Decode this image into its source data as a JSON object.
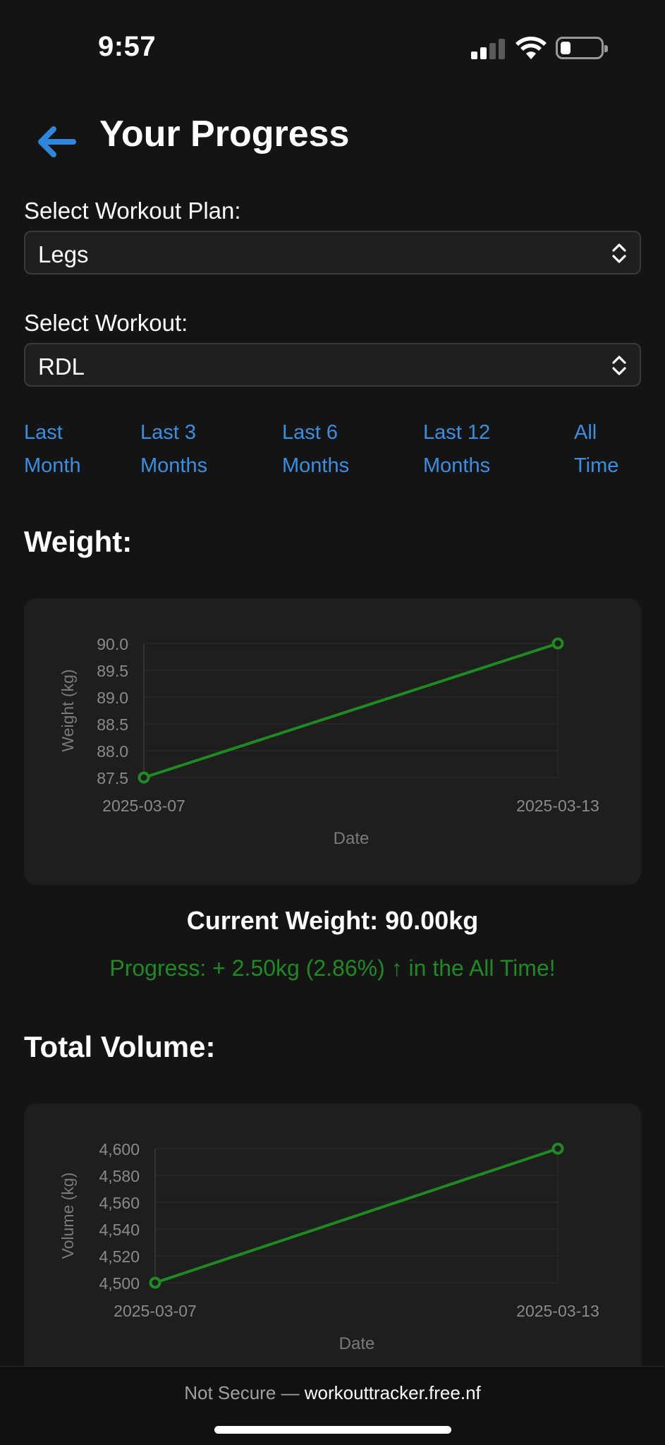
{
  "status_bar": {
    "time": "9:57"
  },
  "header": {
    "title": "Your Progress"
  },
  "form": {
    "plan_label": "Select Workout Plan:",
    "plan_value": "Legs",
    "workout_label": "Select Workout:",
    "workout_value": "RDL"
  },
  "ranges": [
    {
      "line1": "Last",
      "line2": "Month"
    },
    {
      "line1": "Last 3",
      "line2": "Months"
    },
    {
      "line1": "Last 6",
      "line2": "Months"
    },
    {
      "line1": "Last 12",
      "line2": "Months"
    },
    {
      "line1": "All",
      "line2": "Time"
    }
  ],
  "weight_section": {
    "title": "Weight:",
    "current": "Current Weight: 90.00kg",
    "progress": "Progress: + 2.50kg (2.86%) ↑ in the All Time!"
  },
  "volume_section": {
    "title": "Total Volume:"
  },
  "colors": {
    "accent": "#3a8fe0",
    "series": "#1f8a22",
    "background": "#141414",
    "card": "#1e1e1e"
  },
  "chart_data": [
    {
      "type": "line",
      "x": [
        "2025-03-07",
        "2025-03-13"
      ],
      "series": [
        {
          "values": [
            87.5,
            90.0
          ]
        }
      ],
      "xlabel": "Date",
      "ylabel": "Weight (kg)",
      "yticks": [
        "90.0",
        "89.5",
        "89.0",
        "88.5",
        "88.0",
        "87.5"
      ],
      "ylim": [
        87.5,
        90.0
      ],
      "grid": true
    },
    {
      "type": "line",
      "x": [
        "2025-03-07",
        "2025-03-13"
      ],
      "series": [
        {
          "values": [
            4500,
            4600
          ]
        }
      ],
      "xlabel": "Date",
      "ylabel": "Volume (kg)",
      "yticks": [
        "4,600",
        "4,580",
        "4,560",
        "4,540",
        "4,520",
        "4,500"
      ],
      "ylim": [
        4500,
        4600
      ],
      "grid": true
    }
  ],
  "browser": {
    "insecure_label": "Not Secure —",
    "host": "workouttracker.free.nf"
  }
}
